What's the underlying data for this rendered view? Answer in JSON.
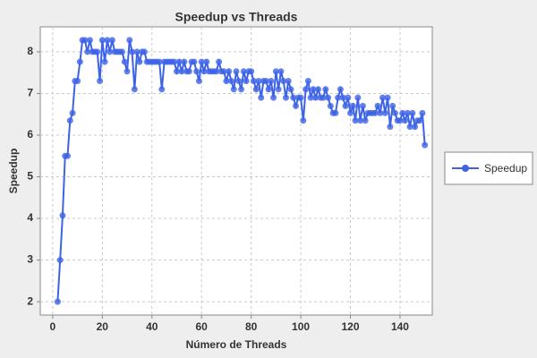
{
  "chart_data": {
    "type": "line",
    "title": "Speedup vs Threads",
    "x_label": "Número de Threads",
    "y_label": "Speedup",
    "x": [
      2,
      3,
      4,
      5,
      6,
      7,
      8,
      9,
      10,
      11,
      12,
      13,
      14,
      15,
      16,
      17,
      18,
      19,
      20,
      21,
      22,
      23,
      24,
      25,
      26,
      27,
      28,
      29,
      30,
      31,
      32,
      33,
      34,
      35,
      36,
      37,
      38,
      39,
      40,
      41,
      42,
      43,
      44,
      45,
      46,
      47,
      48,
      49,
      50,
      51,
      52,
      53,
      54,
      55,
      56,
      57,
      58,
      59,
      60,
      61,
      62,
      63,
      64,
      65,
      66,
      67,
      68,
      69,
      70,
      71,
      72,
      73,
      74,
      75,
      76,
      77,
      78,
      79,
      80,
      81,
      82,
      83,
      84,
      85,
      86,
      87,
      88,
      89,
      90,
      91,
      92,
      93,
      94,
      95,
      96,
      97,
      98,
      99,
      100,
      101,
      102,
      103,
      104,
      105,
      106,
      107,
      108,
      109,
      110,
      111,
      112,
      113,
      114,
      115,
      116,
      117,
      118,
      119,
      120,
      121,
      122,
      123,
      124,
      125,
      126,
      127,
      128,
      129,
      130,
      131,
      132,
      133,
      134,
      135,
      136,
      137,
      138,
      139,
      140,
      141,
      142,
      143,
      144,
      145,
      146,
      147,
      148,
      149,
      150
    ],
    "series": [
      {
        "name": "Speedup",
        "color": "#3d63e6",
        "values": [
          2.0,
          3.0,
          4.07,
          5.5,
          5.5,
          6.35,
          6.53,
          7.3,
          7.3,
          7.76,
          8.28,
          8.28,
          8.0,
          8.28,
          8.0,
          8.0,
          8.0,
          7.3,
          8.28,
          7.76,
          8.28,
          8.0,
          8.28,
          8.0,
          8.0,
          8.0,
          8.0,
          7.76,
          7.53,
          8.28,
          8.0,
          7.1,
          8.0,
          7.76,
          8.0,
          8.0,
          7.76,
          7.76,
          7.76,
          7.76,
          7.76,
          7.76,
          7.1,
          7.76,
          7.76,
          7.76,
          7.76,
          7.76,
          7.53,
          7.76,
          7.53,
          7.76,
          7.53,
          7.53,
          7.76,
          7.76,
          7.53,
          7.3,
          7.76,
          7.53,
          7.76,
          7.53,
          7.53,
          7.53,
          7.53,
          7.76,
          7.53,
          7.53,
          7.3,
          7.53,
          7.3,
          7.1,
          7.53,
          7.3,
          7.1,
          7.53,
          7.3,
          7.53,
          7.53,
          7.3,
          7.1,
          7.3,
          6.9,
          7.3,
          7.3,
          7.1,
          7.3,
          6.9,
          7.53,
          7.1,
          7.53,
          7.3,
          6.9,
          7.3,
          7.1,
          6.9,
          6.7,
          6.9,
          6.9,
          6.35,
          7.1,
          7.3,
          6.9,
          7.1,
          6.9,
          7.1,
          6.9,
          6.9,
          7.1,
          6.9,
          6.7,
          6.53,
          6.53,
          6.9,
          7.1,
          6.9,
          6.7,
          6.9,
          6.53,
          6.7,
          6.35,
          6.9,
          6.35,
          6.7,
          6.35,
          6.53,
          6.53,
          6.53,
          6.53,
          6.7,
          6.53,
          6.9,
          6.53,
          6.9,
          6.2,
          6.7,
          6.53,
          6.35,
          6.35,
          6.53,
          6.35,
          6.53,
          6.2,
          6.53,
          6.2,
          6.35,
          6.35,
          6.53,
          5.76
        ]
      }
    ],
    "xlim": [
      -5,
      153
    ],
    "ylim": [
      1.68,
      8.6
    ],
    "xticks": [
      0,
      20,
      40,
      60,
      80,
      100,
      120,
      140
    ],
    "yticks": [
      2,
      3,
      4,
      5,
      6,
      7,
      8
    ],
    "grid": true,
    "legend": "right"
  }
}
